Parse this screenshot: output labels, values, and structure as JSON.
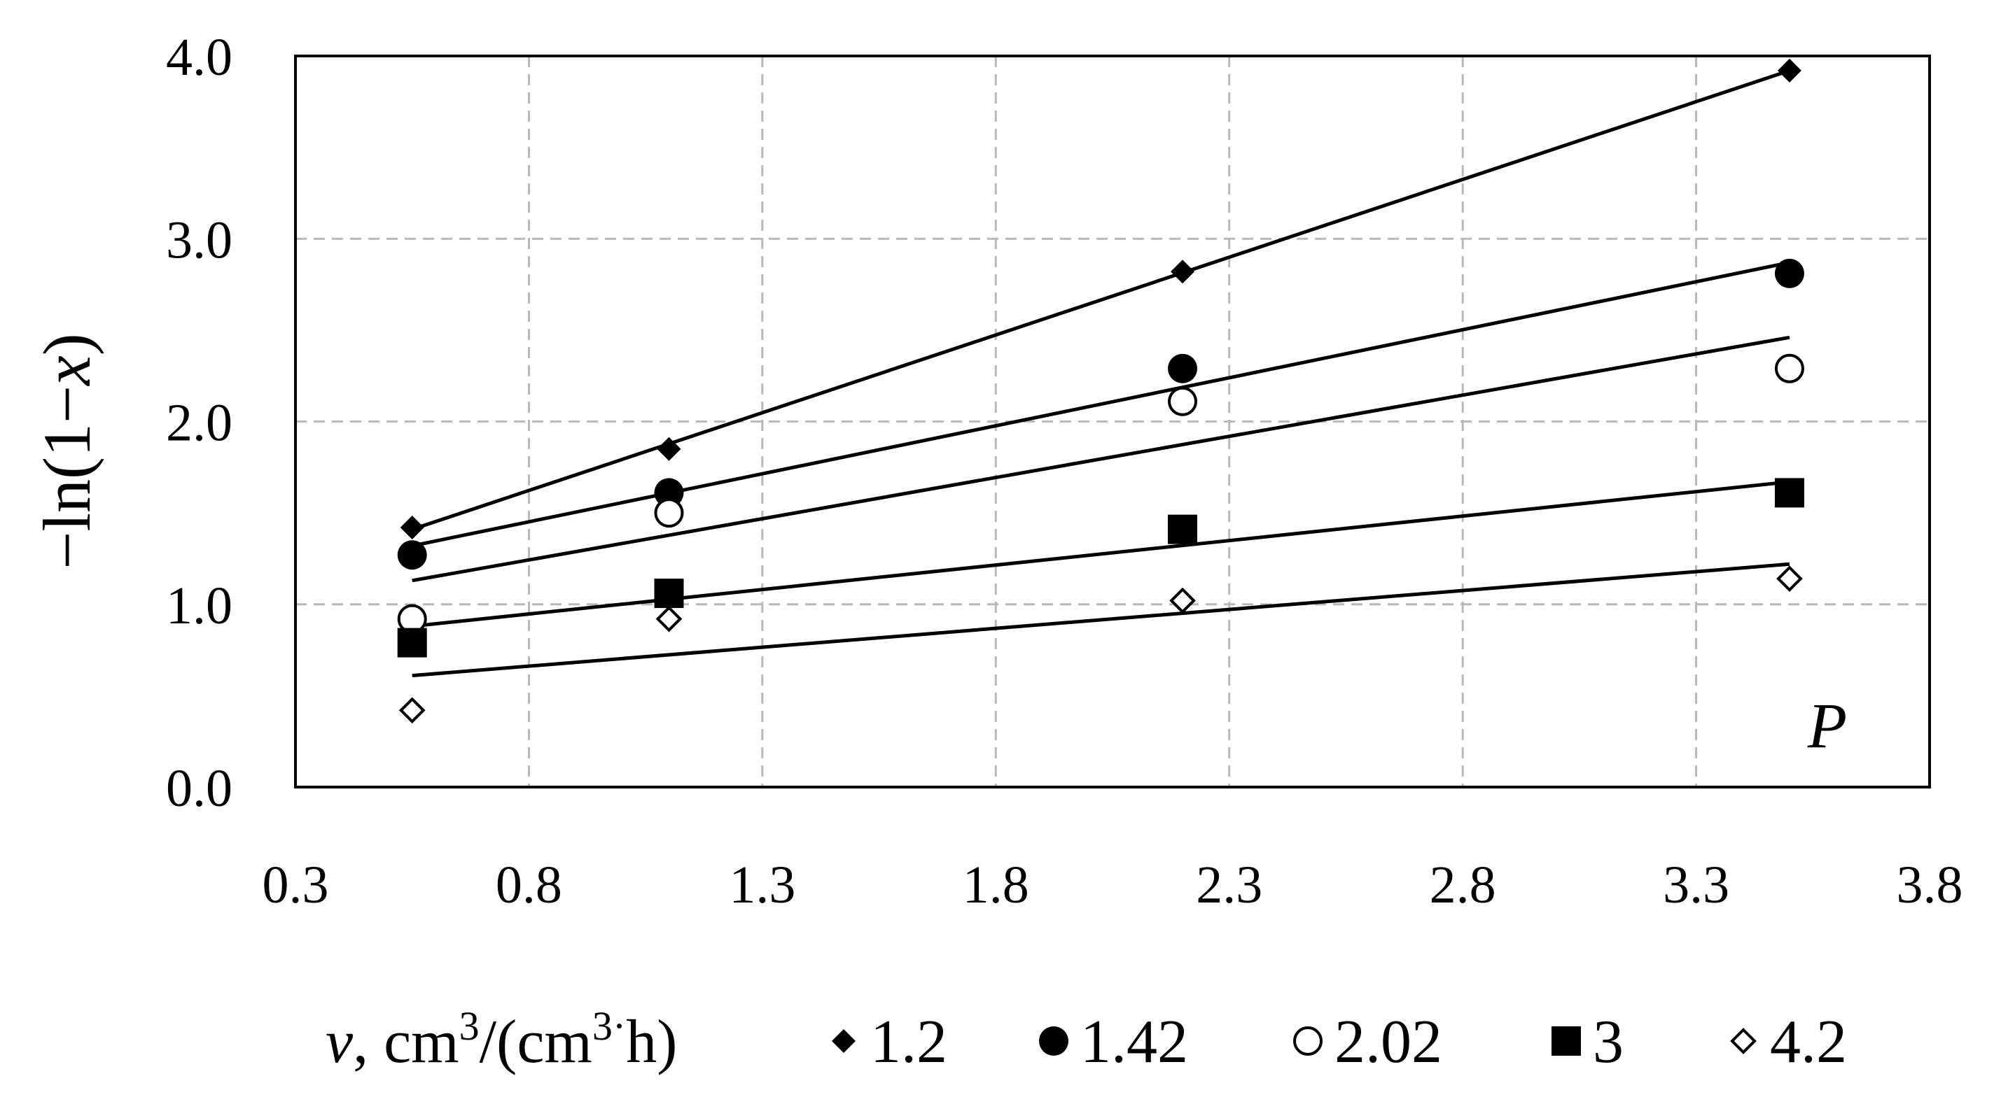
{
  "chart_data": {
    "type": "scatter",
    "title": "",
    "xlabel_parts": {
      "var": "v",
      "rest": ", cm",
      "sup1": "3",
      "mid": "/(cm",
      "sup2": "3",
      "dot": "·",
      "end": "h)"
    },
    "ylabel_parts": {
      "pre": "−ln(1−",
      "var": "x",
      "post": ")"
    },
    "xlim": [
      0.3,
      3.8
    ],
    "ylim": [
      0.0,
      4.0
    ],
    "x_ticks": [
      0.3,
      0.8,
      1.3,
      1.8,
      2.3,
      2.8,
      3.3,
      3.8
    ],
    "x_tick_labels": [
      "0.3",
      "0.8",
      "1.3",
      "1.8",
      "2.3",
      "2.8",
      "3.3",
      "3.8"
    ],
    "y_ticks": [
      0.0,
      1.0,
      2.0,
      3.0,
      4.0
    ],
    "y_tick_labels": [
      "0.0",
      "1.0",
      "2.0",
      "3.0",
      "4.0"
    ],
    "grid": true,
    "legend_position": "bottom",
    "annotation": "P",
    "series": [
      {
        "name": "1.2",
        "marker": "diamond-filled",
        "x": [
          0.55,
          1.1,
          2.2,
          3.5
        ],
        "y": [
          1.42,
          1.85,
          2.82,
          3.92
        ],
        "fit": [
          [
            0.55,
            1.41
          ],
          [
            3.5,
            3.92
          ]
        ]
      },
      {
        "name": "1.42",
        "marker": "circle-filled",
        "x": [
          0.55,
          1.1,
          2.2,
          3.5
        ],
        "y": [
          1.27,
          1.61,
          2.29,
          2.81
        ],
        "fit": [
          [
            0.55,
            1.32
          ],
          [
            3.5,
            2.87
          ]
        ]
      },
      {
        "name": "2.02",
        "marker": "circle-open",
        "x": [
          0.55,
          1.1,
          2.2,
          3.5
        ],
        "y": [
          0.92,
          1.5,
          2.11,
          2.29
        ],
        "fit": [
          [
            0.55,
            1.13
          ],
          [
            3.5,
            2.46
          ]
        ]
      },
      {
        "name": "3",
        "marker": "square-filled",
        "x": [
          0.55,
          1.1,
          2.2,
          3.5
        ],
        "y": [
          0.79,
          1.06,
          1.41,
          1.61
        ],
        "fit": [
          [
            0.55,
            0.88
          ],
          [
            3.5,
            1.67
          ]
        ]
      },
      {
        "name": "4.2",
        "marker": "diamond-open",
        "x": [
          0.55,
          1.1,
          2.2,
          3.5
        ],
        "y": [
          0.42,
          0.92,
          1.02,
          1.14
        ],
        "fit": [
          [
            0.55,
            0.61
          ],
          [
            3.5,
            1.22
          ]
        ]
      }
    ]
  }
}
